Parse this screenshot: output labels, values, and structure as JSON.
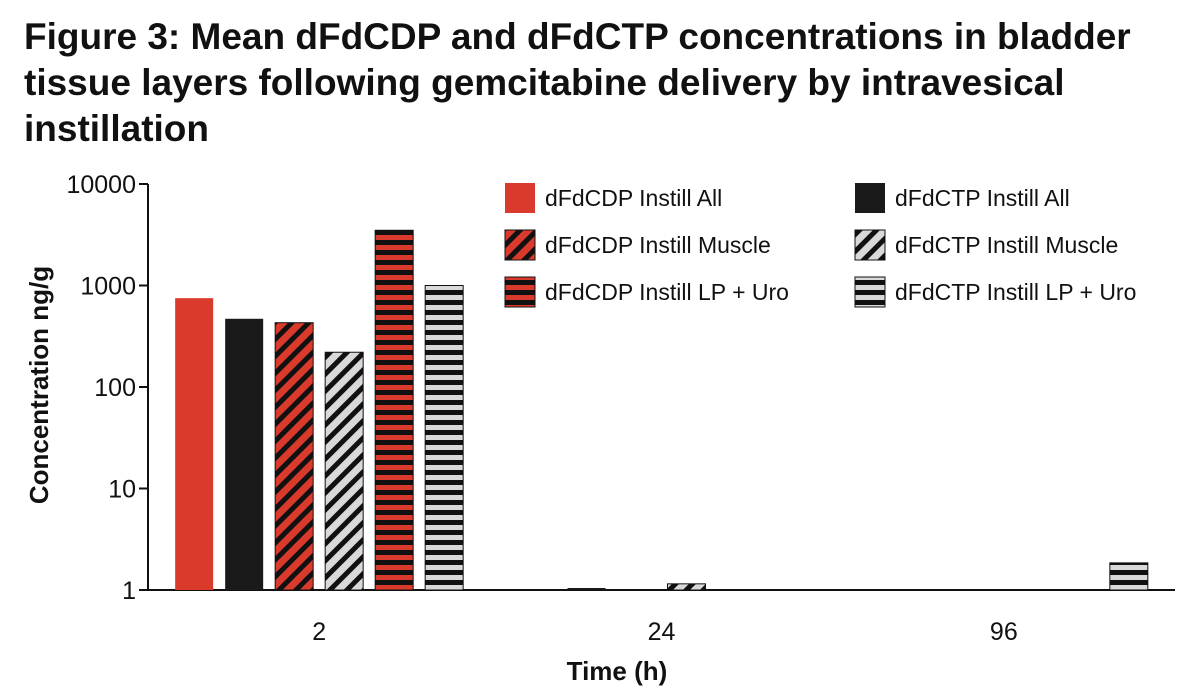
{
  "figure": {
    "title": "Figure 3: Mean dFdCDP and dFdCTP concentrations in bladder tissue layers following gemcitabine delivery by intravesical instillation"
  },
  "colors": {
    "red": "#d93a2b",
    "black": "#1a1a1a",
    "light_gray": "#d9d9d9",
    "axis": "#111111"
  },
  "chart_data": {
    "type": "bar",
    "title": "",
    "xlabel": "Time (h)",
    "ylabel": "Concentration ng/g",
    "yscale": "log",
    "ylim": [
      1,
      10000
    ],
    "yticks": [
      1,
      10,
      100,
      1000,
      10000
    ],
    "ytick_labels": [
      "1",
      "10",
      "100",
      "1000",
      "10000"
    ],
    "categories": [
      "2",
      "24",
      "96"
    ],
    "legend_position": "top-right",
    "series": [
      {
        "name": "dFdCDP Instill All",
        "color": "#d93a2b",
        "pattern": "solid",
        "values": [
          750,
          0,
          0
        ]
      },
      {
        "name": "dFdCTP Instill All",
        "color": "#1a1a1a",
        "pattern": "solid",
        "values": [
          470,
          1,
          0
        ]
      },
      {
        "name": "dFdCDP Instill Muscle",
        "color": "#d93a2b",
        "pattern": "diagonal",
        "values": [
          430,
          0,
          0
        ]
      },
      {
        "name": "dFdCTP Instill Muscle",
        "color": "#d9d9d9",
        "pattern": "diagonal",
        "values": [
          220,
          1.15,
          0
        ]
      },
      {
        "name": "dFdCDP Instill LP + Uro",
        "color": "#d93a2b",
        "pattern": "horizontal",
        "values": [
          3500,
          0,
          0
        ]
      },
      {
        "name": "dFdCTP Instill LP + Uro",
        "color": "#d9d9d9",
        "pattern": "horizontal",
        "values": [
          1000,
          0,
          1.85
        ]
      }
    ]
  }
}
